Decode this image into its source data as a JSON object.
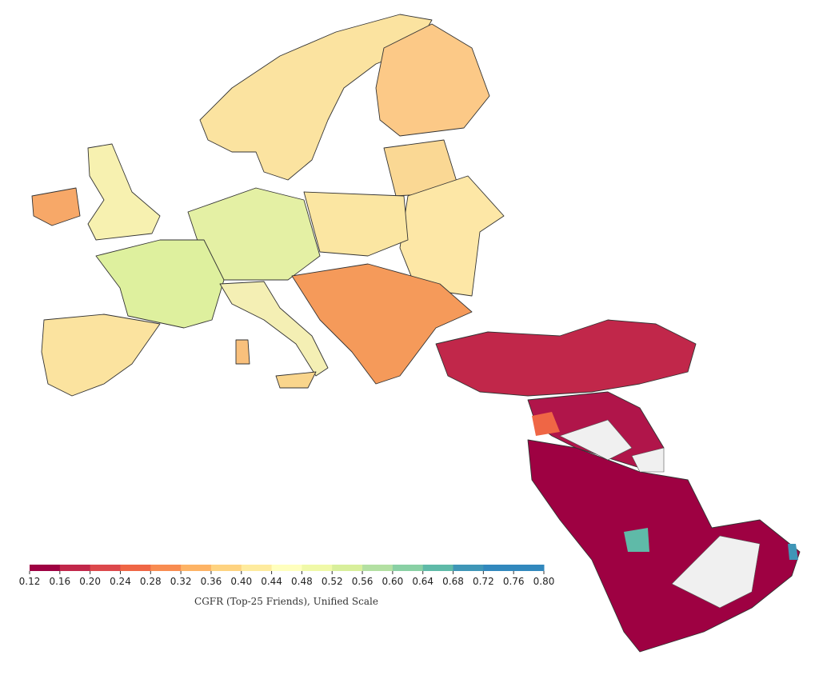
{
  "colorbar": {
    "label": "CGFR (Top-25 Friends), Unified Scale",
    "xlim": [
      0.12,
      0.8
    ],
    "xticks": [
      0.12,
      0.16,
      {
        "value": 0.2,
        "label": "0.20"
      },
      0.24,
      0.28,
      0.32,
      0.36,
      {
        "value": 0.4,
        "label": "0.40"
      },
      0.44,
      0.48,
      0.52,
      0.56,
      {
        "value": 0.6,
        "label": "0.60"
      },
      0.64,
      0.68,
      0.72,
      0.76,
      {
        "value": 0.8,
        "label": "0.80"
      }
    ],
    "colors": [
      "#9e0142",
      "#c1274a",
      "#dc484c",
      "#ef6645",
      "#f88c51",
      "#fdb365",
      "#fed380",
      "#feeb9e",
      "#ffffbe",
      "#f0f9a8",
      "#d8ef9b",
      "#b3e0a2",
      "#89d0a4",
      "#5fbaa8",
      "#3f96b7",
      "#3288bd",
      "#3288bd"
    ]
  }
}
